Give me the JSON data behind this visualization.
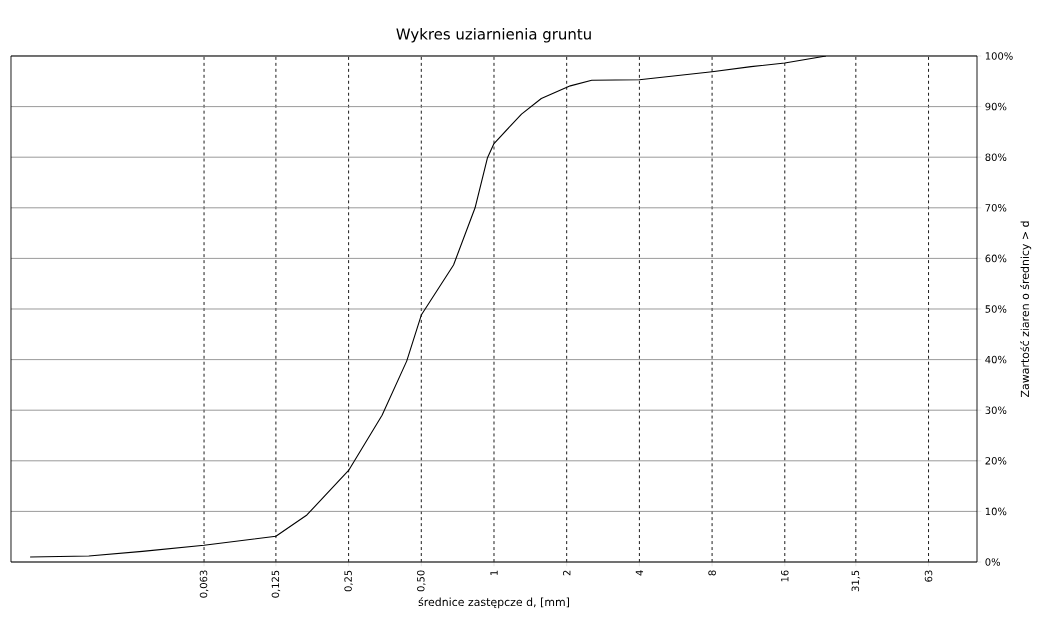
{
  "chart_data": {
    "type": "line",
    "title": "Wykres uziarnienia gruntu",
    "xlabel": "średnice zastępcze d, [mm]",
    "ylabel": "Zawartość ziaren o średnicy > d",
    "log": "x",
    "grid": true,
    "marker": "none",
    "line_style": "solid",
    "xlim": [
      0.01,
      100
    ],
    "ylim": [
      0,
      100
    ],
    "xticks": [
      {
        "value": 0.063,
        "label": "0,063"
      },
      {
        "value": 0.125,
        "label": "0,125"
      },
      {
        "value": 0.25,
        "label": "0,25"
      },
      {
        "value": 0.5,
        "label": "0,50"
      },
      1,
      2,
      4,
      8,
      16,
      {
        "value": 31.5,
        "label": "31,5"
      },
      63
    ],
    "yticks": [
      {
        "value": 0,
        "label": "0%"
      },
      {
        "value": 10,
        "label": "10%"
      },
      {
        "value": 20,
        "label": "20%"
      },
      {
        "value": 30,
        "label": "30%"
      },
      {
        "value": 40,
        "label": "40%"
      },
      {
        "value": 50,
        "label": "50%"
      },
      {
        "value": 60,
        "label": "60%"
      },
      {
        "value": 70,
        "label": "70%"
      },
      {
        "value": 80,
        "label": "80%"
      },
      {
        "value": 90,
        "label": "90%"
      },
      {
        "value": 100,
        "label": "100%"
      }
    ],
    "series": [
      {
        "color": "#000000",
        "x": [
          0.012,
          0.021,
          0.035,
          0.063,
          0.125,
          0.168,
          0.25,
          0.344,
          0.435,
          0.5,
          0.68,
          0.835,
          0.94,
          1.0,
          1.17,
          1.3,
          1.57,
          2.07,
          2.54,
          4,
          8,
          11.6,
          16,
          23.7
        ],
        "values": [
          1,
          1.2,
          2.1,
          3.3,
          5.1,
          9.3,
          18.1,
          29,
          39.7,
          48.8,
          58.7,
          70,
          79.9,
          82.7,
          86.2,
          88.5,
          91.6,
          94.1,
          95.2,
          95.3,
          96.9,
          97.9,
          98.6,
          100
        ]
      }
    ]
  }
}
